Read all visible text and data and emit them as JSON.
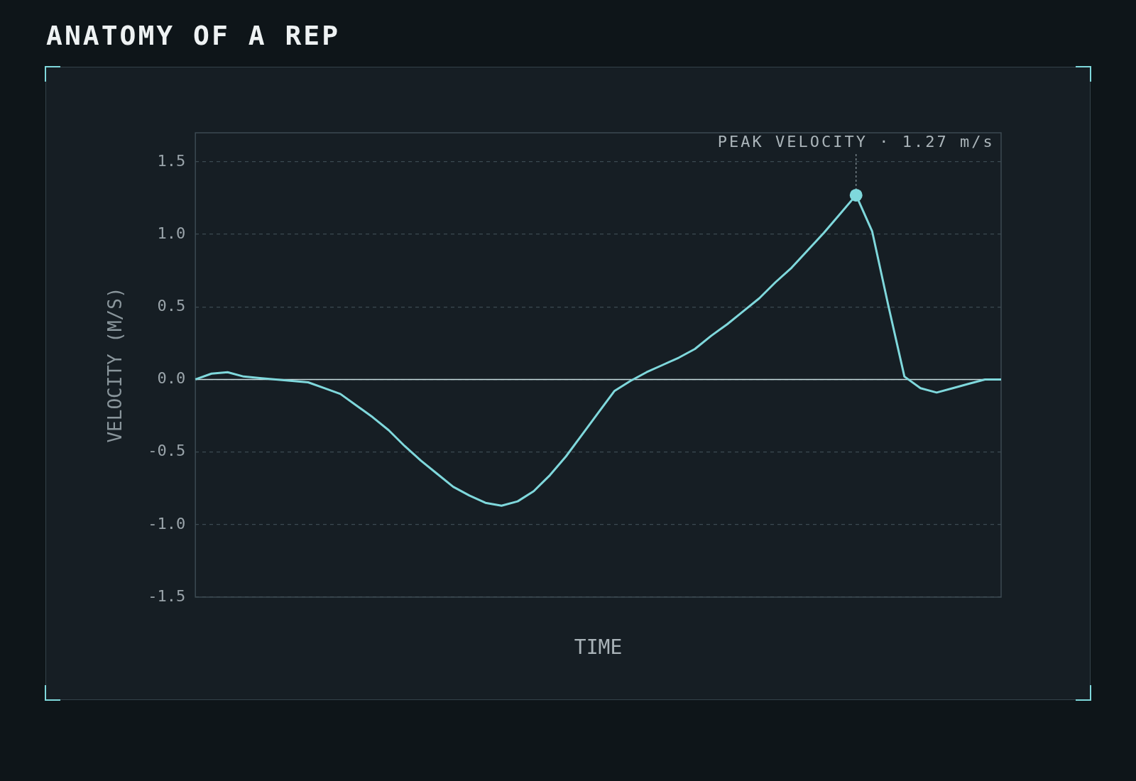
{
  "chart_data": {
    "type": "line",
    "title": "ANATOMY OF A REP",
    "xlabel": "TIME",
    "ylabel": "VELOCITY (M/S)",
    "categories": [
      null,
      null,
      null,
      null,
      null,
      null,
      null,
      null,
      null,
      null,
      null,
      null,
      null,
      null,
      null,
      null,
      null,
      null,
      null,
      null,
      null,
      null,
      null,
      null,
      null,
      null,
      null,
      null,
      null,
      null,
      null,
      null,
      null,
      null,
      null,
      null,
      null,
      null,
      null,
      null,
      null,
      null,
      null,
      null,
      null,
      null,
      null,
      null,
      null,
      null,
      null
    ],
    "series": [
      {
        "color": "#7fd8dc",
        "values": [
          0,
          0.04,
          0.05,
          0.02,
          0.01,
          0,
          -0.01,
          -0.02,
          -0.06,
          -0.1,
          -0.18,
          -0.26,
          -0.35,
          -0.46,
          -0.56,
          -0.65,
          -0.74,
          -0.8,
          -0.85,
          -0.87,
          -0.84,
          -0.77,
          -0.66,
          -0.53,
          -0.38,
          -0.23,
          -0.08,
          -0.01,
          0.05,
          0.1,
          0.15,
          0.21,
          0.3,
          0.38,
          0.47,
          0.56,
          0.67,
          0.77,
          0.89,
          1.01,
          1.14,
          1.27,
          1.02,
          0.51,
          0.02,
          -0.06,
          -0.09,
          -0.06,
          -0.03,
          0,
          0
        ]
      }
    ],
    "ylim": [
      -1.5,
      1.7
    ],
    "yticks": [
      1.5,
      {
        "value": 1,
        "label": "1.0"
      },
      0.5,
      {
        "value": 0,
        "label": "0.0"
      },
      -0.5,
      {
        "value": -1,
        "label": "-1.0"
      },
      -1.5
    ],
    "grid": "y",
    "legend": false,
    "marker": "none",
    "line_style": "solid",
    "ref_lines": [
      {
        "axis": "y",
        "value": 0,
        "color": "#c8dde0"
      }
    ],
    "annotations": [
      {
        "text": "PEAK VELOCITY · 1.27 m/s",
        "y": 1.27
      }
    ]
  }
}
